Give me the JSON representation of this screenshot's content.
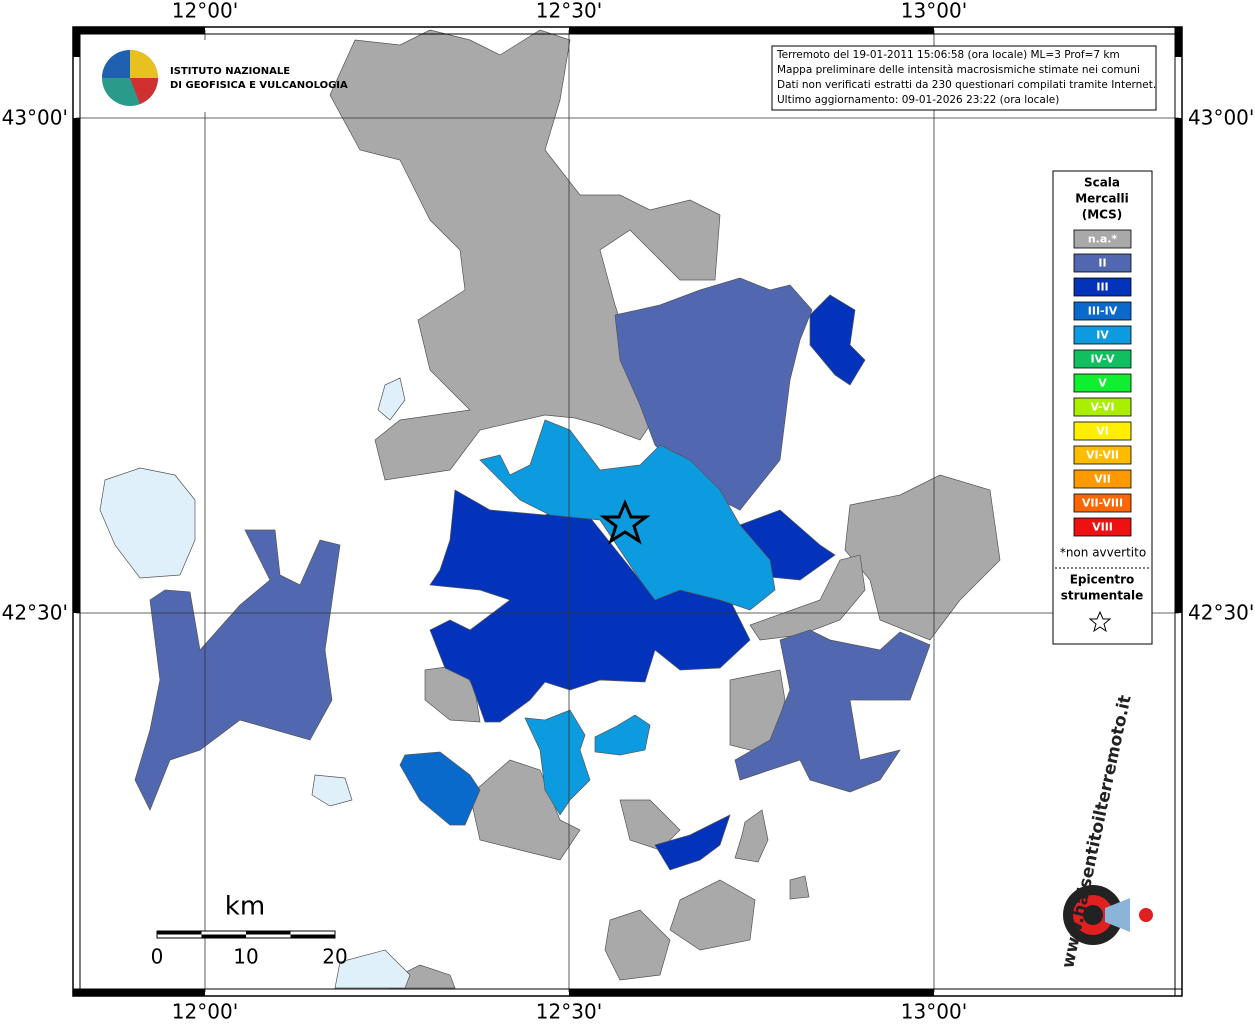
{
  "lon_labels": [
    "12°00'",
    "12°30'",
    "13°00'"
  ],
  "lat_labels": [
    "43°00'",
    "42°30'"
  ],
  "logo": [
    "ISTITUTO NAZIONALE",
    "DI GEOFISICA E VULCANOLOGIA"
  ],
  "info": [
    "Terremoto del 19-01-2011 15:06:58 (ora locale) ML=3 Prof=7 km",
    "Mappa preliminare delle intensità macrosismiche stimate nei comuni",
    "Dati non verificati estratti da 230 questionari compilati tramite Internet.",
    "Ultimo aggiornamento: 09-01-2026 23:22 (ora locale)"
  ],
  "legend": {
    "title": [
      "Scala",
      "Mercalli",
      "(MCS)"
    ],
    "classes": [
      {
        "label": "n.a.*",
        "color": "#a9a9a9"
      },
      {
        "label": "II",
        "color": "#5168b0"
      },
      {
        "label": "III",
        "color": "#0433bb"
      },
      {
        "label": "III-IV",
        "color": "#0a6acc"
      },
      {
        "label": "IV",
        "color": "#0d9be0"
      },
      {
        "label": "IV-V",
        "color": "#10c060"
      },
      {
        "label": "V",
        "color": "#10ee30"
      },
      {
        "label": "V-VI",
        "color": "#aaee00"
      },
      {
        "label": "VI",
        "color": "#ffee00"
      },
      {
        "label": "VI-VII",
        "color": "#ffbb00"
      },
      {
        "label": "VII",
        "color": "#ff9900"
      },
      {
        "label": "VII-VIII",
        "color": "#ff6600"
      },
      {
        "label": "VIII",
        "color": "#ee1111"
      }
    ],
    "note": "*non avvertito",
    "epicenter": [
      "Epicentro",
      "strumentale"
    ]
  },
  "scale": {
    "unit": "km",
    "labels": [
      0,
      10,
      20
    ]
  },
  "watermark": "www.haisentitoilterremoto.it"
}
